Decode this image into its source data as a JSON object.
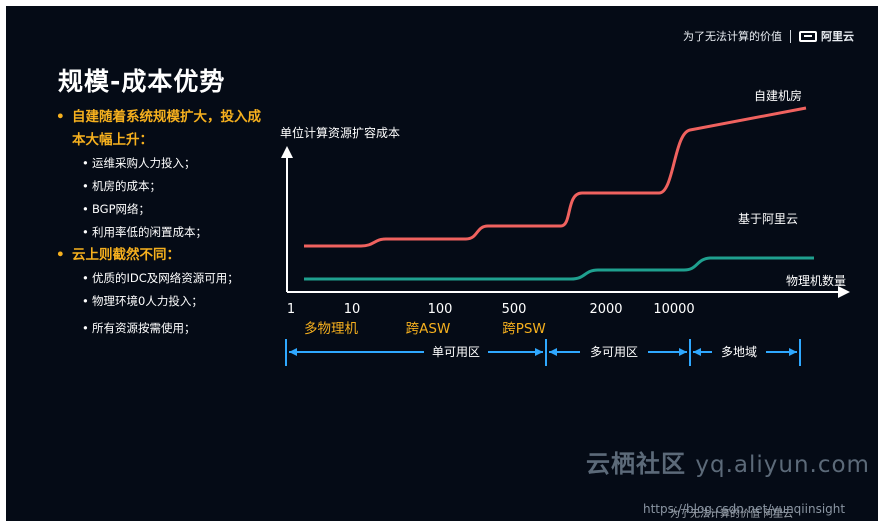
{
  "header": {
    "slogan": "为了无法计算的价值",
    "brand": "阿里云"
  },
  "title": "规模-成本优势",
  "bullets": [
    {
      "text": "自建随着系统规模扩大，投入成本大幅上升：",
      "sub": [
        "运维采购人力投入；",
        "机房的成本；",
        "BGP网络；",
        "利用率低的闲置成本；"
      ]
    },
    {
      "text": "云上则截然不同：",
      "sub": [
        "优质的IDC及网络资源可用；",
        "物理环境0人力投入；",
        "所有资源按需使用；"
      ]
    }
  ],
  "chart_data": {
    "type": "line",
    "ylabel": "单位计算资源扩容成本",
    "xlabel": "物理机数量",
    "x_ticks": [
      "1",
      "10",
      "100",
      "500",
      "2000",
      "10000"
    ],
    "stage_labels": [
      "多物理机",
      "跨ASW",
      "跨PSW"
    ],
    "series": [
      {
        "name": "自建机房",
        "color": "#f0625f"
      },
      {
        "name": "基于阿里云",
        "color": "#1fa08f"
      }
    ],
    "ranges": [
      "单可用区",
      "多可用区",
      "多地域"
    ]
  },
  "watermark": {
    "text": "云栖社区",
    "domain": "yq.aliyun.com"
  },
  "url": "https://blog.csdn.net/yunqiinsight",
  "footer": {
    "slogan": "为了无法计算的价值",
    "brand": "阿里云"
  }
}
